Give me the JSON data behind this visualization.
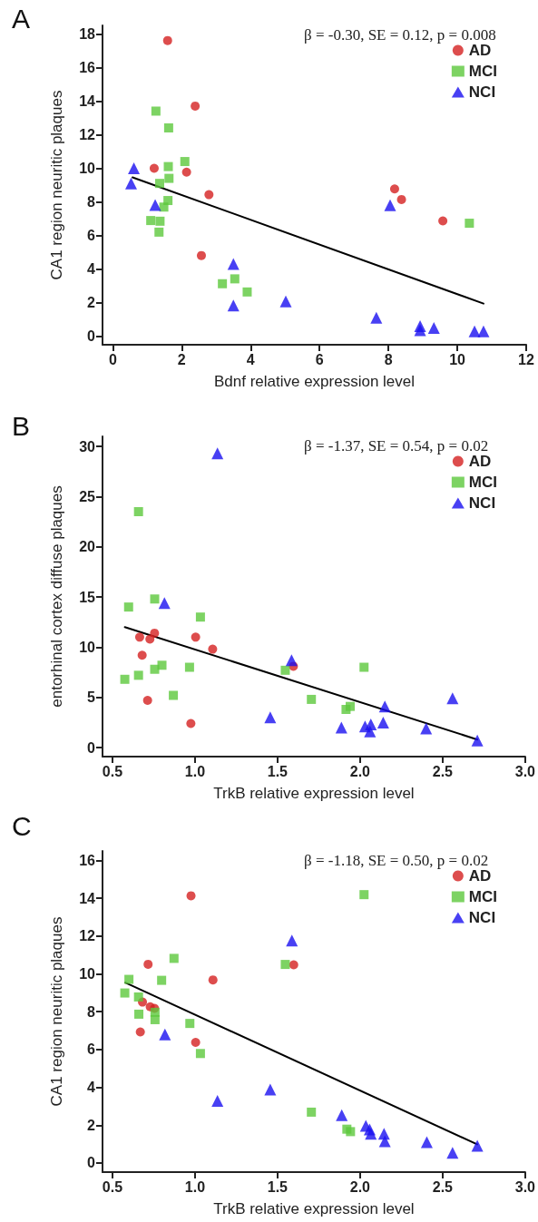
{
  "chart_data": [
    {
      "type": "scatter",
      "title": "A",
      "xlabel": "Bdnf relative expression level",
      "ylabel": "CA1 region neuritic plaques",
      "annotations": [
        "β = -0.30, SE = 0.12, p = 0.008"
      ],
      "legend": "top right",
      "xlim": [
        -0.3,
        12
      ],
      "ylim": [
        -0.5,
        18.5
      ],
      "xticks": [
        0,
        2,
        4,
        6,
        8,
        10,
        12
      ],
      "yticks": [
        0,
        2,
        4,
        6,
        8,
        10,
        12,
        14,
        16,
        18
      ],
      "series": [
        {
          "name": "AD",
          "color": "#d42020",
          "marker": "circle",
          "x": [
            1.59,
            2.39,
            1.2,
            2.14,
            2.79,
            2.57,
            8.18,
            8.38,
            9.58
          ],
          "values": [
            17.6,
            13.7,
            10.0,
            9.77,
            8.43,
            4.81,
            8.77,
            8.14,
            6.87
          ]
        },
        {
          "name": "MCI",
          "color": "#5cc83c",
          "marker": "square",
          "x": [
            1.25,
            1.62,
            2.09,
            1.61,
            1.63,
            1.36,
            1.6,
            1.48,
            1.1,
            1.37,
            1.34,
            3.18,
            3.54,
            3.9,
            10.35
          ],
          "values": [
            13.4,
            12.4,
            10.4,
            10.1,
            9.4,
            9.1,
            8.08,
            7.69,
            6.89,
            6.85,
            6.2,
            3.13,
            3.42,
            2.64,
            6.73
          ]
        },
        {
          "name": "NCI",
          "color": "#1a10f0",
          "marker": "triangle",
          "x": [
            0.61,
            0.53,
            1.23,
            3.5,
            3.5,
            5.02,
            7.65,
            8.05,
            8.92,
            8.92,
            9.32,
            10.5,
            10.76
          ],
          "values": [
            10.0,
            9.1,
            7.81,
            4.3,
            1.84,
            2.08,
            1.1,
            7.8,
            0.6,
            0.36,
            0.5,
            0.29,
            0.3
          ]
        },
        {
          "type": "line",
          "color": "#000000",
          "marker": "none",
          "x": [
            0.57,
            10.76
          ],
          "values": [
            9.46,
            1.95
          ]
        }
      ]
    },
    {
      "type": "scatter",
      "title": "B",
      "xlabel": "TrkB relative expression level",
      "ylabel": "entorhinal cortex diffuse plaques",
      "annotations": [
        "β = -1.37, SE = 0.54, p = 0.02"
      ],
      "legend": "top right",
      "xlim": [
        0.44,
        3.0
      ],
      "ylim": [
        -0.9,
        31
      ],
      "xticks": [
        {
          "value": 0.5,
          "label": "0.5"
        },
        {
          "value": 1,
          "label": "1.0"
        },
        {
          "value": 1.5,
          "label": "1.5"
        },
        {
          "value": 2,
          "label": "2.0"
        },
        {
          "value": 2.5,
          "label": "2.5"
        },
        {
          "value": 3,
          "label": "3.0"
        }
      ],
      "yticks": [
        0,
        5,
        10,
        15,
        20,
        25,
        30
      ],
      "series": [
        {
          "name": "AD",
          "color": "#d42020",
          "marker": "circle",
          "x": [
            0.665,
            0.727,
            0.755,
            0.68,
            1.004,
            1.107,
            0.713,
            0.975,
            1.596
          ],
          "values": [
            11.0,
            10.8,
            11.4,
            9.2,
            11.0,
            9.8,
            4.7,
            2.4,
            8.1
          ]
        },
        {
          "name": "MCI",
          "color": "#5cc83c",
          "marker": "square",
          "x": [
            0.658,
            0.598,
            0.756,
            1.033,
            0.575,
            0.658,
            0.756,
            0.8,
            0.967,
            0.869,
            1.547,
            1.705,
            1.915,
            1.94,
            2.024
          ],
          "values": [
            23.5,
            14.0,
            14.8,
            13.0,
            6.8,
            7.2,
            7.8,
            8.2,
            8.0,
            5.2,
            7.7,
            4.8,
            3.8,
            4.1,
            8.0
          ]
        },
        {
          "name": "NCI",
          "color": "#1a10f0",
          "marker": "triangle",
          "x": [
            1.136,
            0.815,
            1.585,
            1.456,
            1.887,
            2.03,
            2.06,
            2.065,
            2.15,
            2.14,
            2.4,
            2.56,
            2.71
          ],
          "values": [
            29.3,
            14.4,
            8.7,
            3.0,
            2.0,
            2.1,
            1.6,
            2.3,
            4.1,
            2.5,
            1.9,
            4.9,
            0.7
          ]
        },
        {
          "type": "line",
          "color": "#000000",
          "marker": "none",
          "x": [
            0.575,
            2.71
          ],
          "values": [
            12.0,
            0.8
          ]
        }
      ]
    },
    {
      "type": "scatter",
      "title": "C",
      "xlabel": "TrkB relative expression level",
      "ylabel": "CA1 region neuritic plaques",
      "annotations": [
        "β = -1.18, SE = 0.50, p = 0.02"
      ],
      "legend": "top right",
      "xlim": [
        0.44,
        3.0
      ],
      "ylim": [
        -0.48,
        16.5
      ],
      "xticks": [
        {
          "value": 0.5,
          "label": "0.5"
        },
        {
          "value": 1,
          "label": "1.0"
        },
        {
          "value": 1.5,
          "label": "1.5"
        },
        {
          "value": 2,
          "label": "2.0"
        },
        {
          "value": 2.5,
          "label": "2.5"
        },
        {
          "value": 3,
          "label": "3.0"
        }
      ],
      "yticks": [
        0,
        2,
        4,
        6,
        8,
        10,
        12,
        14,
        16
      ],
      "series": [
        {
          "name": "AD",
          "color": "#d42020",
          "marker": "circle",
          "x": [
            0.976,
            0.716,
            0.682,
            0.729,
            0.755,
            0.669,
            1.004,
            1.109,
            1.598
          ],
          "values": [
            14.13,
            10.51,
            8.51,
            8.26,
            8.18,
            6.93,
            6.38,
            9.68,
            10.48
          ]
        },
        {
          "name": "MCI",
          "color": "#5cc83c",
          "marker": "square",
          "x": [
            0.575,
            0.6,
            0.658,
            0.66,
            0.758,
            0.758,
            0.798,
            0.873,
            0.969,
            1.033,
            1.547,
            1.705,
            1.92,
            1.942,
            2.024
          ],
          "values": [
            8.99,
            9.71,
            8.78,
            7.87,
            7.97,
            7.58,
            9.66,
            10.82,
            7.38,
            5.79,
            10.5,
            2.69,
            1.79,
            1.66,
            14.19
          ]
        },
        {
          "name": "NCI",
          "color": "#1a10f0",
          "marker": "triangle",
          "x": [
            1.587,
            0.818,
            1.136,
            1.456,
            1.889,
            2.035,
            2.058,
            2.065,
            2.145,
            2.15,
            2.404,
            2.56,
            2.71
          ],
          "values": [
            11.76,
            6.8,
            3.28,
            3.89,
            2.53,
            1.97,
            1.78,
            1.55,
            1.55,
            1.15,
            1.1,
            0.54,
            0.91
          ]
        },
        {
          "type": "line",
          "color": "#000000",
          "marker": "none",
          "x": [
            0.578,
            2.709
          ],
          "values": [
            9.54,
            0.99
          ]
        }
      ]
    }
  ]
}
